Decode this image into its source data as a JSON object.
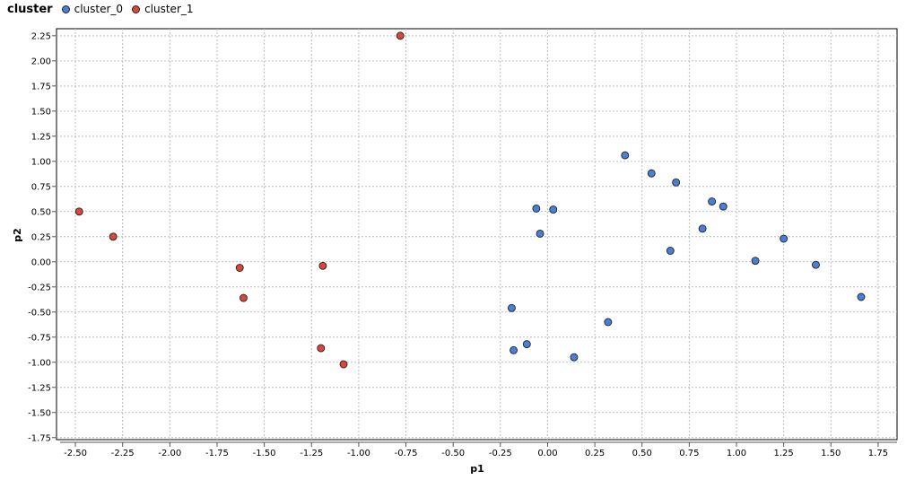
{
  "legend": {
    "title": "cluster",
    "items": [
      {
        "label": "cluster_0",
        "color": "#4a7fd6"
      },
      {
        "label": "cluster_1",
        "color": "#d9463a"
      }
    ]
  },
  "chart_data": {
    "type": "scatter",
    "xlabel": "p1",
    "ylabel": "p2",
    "xlim": [
      -2.6,
      1.85
    ],
    "ylim": [
      -1.77,
      2.32
    ],
    "grid": true,
    "legend_position": "top-left",
    "xticks": [
      -2.5,
      -2.25,
      -2.0,
      -1.75,
      -1.5,
      -1.25,
      -1.0,
      -0.75,
      -0.5,
      -0.25,
      0.0,
      0.25,
      0.5,
      0.75,
      1.0,
      1.25,
      1.5,
      1.75
    ],
    "xtick_labels": [
      "-2.50",
      "-2.25",
      "-2.00",
      "-1.75",
      "-1.50",
      "-1.25",
      "-1.00",
      "-0.75",
      "-0.50",
      "-0.25",
      "0.00",
      "0.25",
      "0.50",
      "0.75",
      "1.00",
      "1.25",
      "1.50",
      "1.75"
    ],
    "yticks": [
      2.25,
      2.0,
      1.75,
      1.5,
      1.25,
      1.0,
      0.75,
      0.5,
      0.25,
      0.0,
      -0.25,
      -0.5,
      -0.75,
      -1.0,
      -1.25,
      -1.5,
      -1.75
    ],
    "ytick_labels": [
      "2.25",
      "2.00",
      "1.75",
      "1.50",
      "1.25",
      "1.00",
      "0.75",
      "0.50",
      "0.25",
      "0.00",
      "-0.25",
      "-0.50",
      "-0.75",
      "-1.00",
      "-1.25",
      "-1.50",
      "-1.75"
    ],
    "series": [
      {
        "name": "cluster_0",
        "color": "#4a7fd6",
        "points": [
          [
            0.41,
            1.06
          ],
          [
            0.55,
            0.88
          ],
          [
            0.68,
            0.79
          ],
          [
            0.87,
            0.6
          ],
          [
            0.93,
            0.55
          ],
          [
            -0.06,
            0.53
          ],
          [
            0.03,
            0.52
          ],
          [
            -0.04,
            0.28
          ],
          [
            0.82,
            0.33
          ],
          [
            0.65,
            0.11
          ],
          [
            1.25,
            0.23
          ],
          [
            1.1,
            0.01
          ],
          [
            1.42,
            -0.03
          ],
          [
            1.66,
            -0.35
          ],
          [
            -0.19,
            -0.46
          ],
          [
            0.32,
            -0.6
          ],
          [
            -0.11,
            -0.82
          ],
          [
            -0.18,
            -0.88
          ],
          [
            0.14,
            -0.95
          ]
        ]
      },
      {
        "name": "cluster_1",
        "color": "#d9463a",
        "points": [
          [
            -0.78,
            2.25
          ],
          [
            -2.48,
            0.5
          ],
          [
            -2.3,
            0.25
          ],
          [
            -1.63,
            -0.06
          ],
          [
            -1.19,
            -0.04
          ],
          [
            -1.61,
            -0.36
          ],
          [
            -1.2,
            -0.86
          ],
          [
            -1.08,
            -1.02
          ]
        ]
      }
    ]
  }
}
